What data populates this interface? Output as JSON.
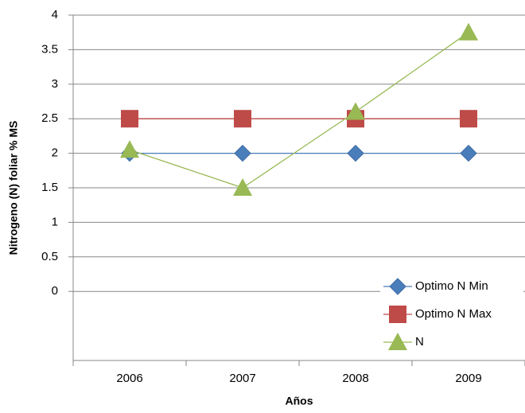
{
  "chart_data": {
    "type": "line",
    "x_label": "Años",
    "y_label": "Nitrogeno (N) foliar % MS",
    "categories": [
      "2006",
      "2007",
      "2008",
      "2009"
    ],
    "series": [
      {
        "name": "Optimo N Min",
        "color": "#4a7ebb",
        "marker": "diamond",
        "values": [
          2,
          2,
          2,
          2
        ]
      },
      {
        "name": "Optimo N Max",
        "color": "#be4b48",
        "marker": "square",
        "values": [
          2.5,
          2.5,
          2.5,
          2.5
        ]
      },
      {
        "name": "N",
        "color": "#98b954",
        "marker": "triangle",
        "values": [
          2.05,
          1.5,
          2.6,
          3.75
        ]
      }
    ],
    "ylim": [
      -1,
      4
    ],
    "yticks": [
      0,
      0.5,
      1,
      1.5,
      2,
      2.5,
      3,
      3.5,
      4
    ],
    "grid": true,
    "legend": "bottom-right"
  }
}
